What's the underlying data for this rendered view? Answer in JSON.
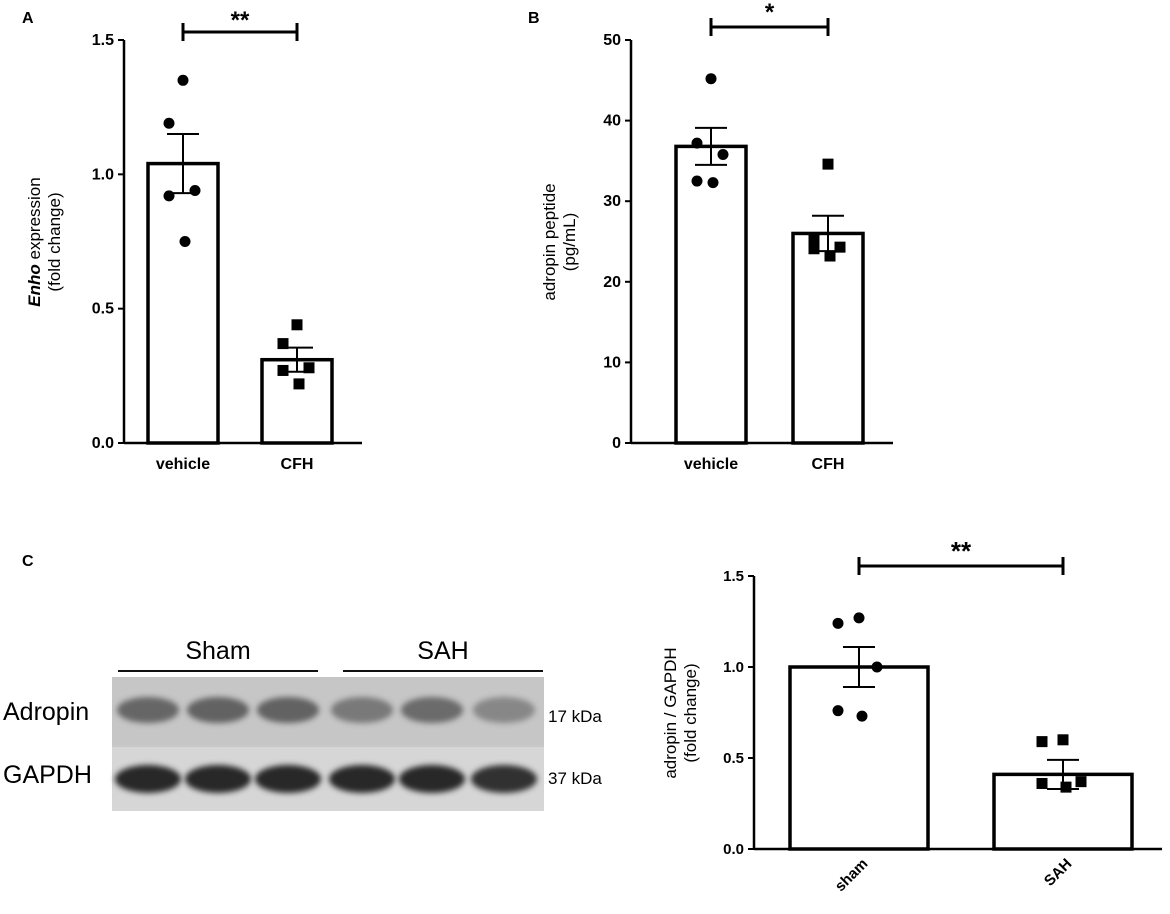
{
  "panels": {
    "a": {
      "letter": "A"
    },
    "b": {
      "letter": "B"
    },
    "c": {
      "letter": "C"
    }
  },
  "chart_data": [
    {
      "id": "A",
      "type": "bar",
      "categories": [
        "vehicle",
        "CFH"
      ],
      "values": [
        1.04,
        0.31
      ],
      "errors": [
        0.11,
        0.045
      ],
      "points": [
        [
          1.35,
          1.19,
          0.94,
          0.92,
          0.75
        ],
        [
          0.44,
          0.37,
          0.28,
          0.27,
          0.22
        ]
      ],
      "markers": [
        "circle",
        "square"
      ],
      "ylabel_italic": "Enho",
      "ylabel_rest": " expression",
      "ylabel2": "(fold change)",
      "ylim": [
        0,
        1.5
      ],
      "yticks": [
        "0.0",
        "0.5",
        "1.0",
        "1.5"
      ],
      "significance": "**"
    },
    {
      "id": "B",
      "type": "bar",
      "categories": [
        "vehicle",
        "CFH"
      ],
      "values": [
        36.8,
        26.0
      ],
      "errors": [
        2.3,
        2.2
      ],
      "points": [
        [
          45.2,
          37.2,
          35.8,
          32.5,
          32.3
        ],
        [
          34.6,
          25.2,
          24.3,
          24.1,
          23.2
        ]
      ],
      "markers": [
        "circle",
        "square"
      ],
      "ylabel": "adropin peptide",
      "ylabel2": "(pg/mL)",
      "ylim": [
        0,
        50
      ],
      "yticks": [
        "0",
        "10",
        "20",
        "30",
        "40",
        "50"
      ],
      "significance": "*"
    },
    {
      "id": "C",
      "type": "bar",
      "categories": [
        "sham",
        "SAH"
      ],
      "values": [
        1.0,
        0.41
      ],
      "errors": [
        0.11,
        0.08
      ],
      "points": [
        [
          1.27,
          1.24,
          1.0,
          0.76,
          0.73
        ],
        [
          0.6,
          0.59,
          0.37,
          0.36,
          0.34
        ]
      ],
      "markers": [
        "circle",
        "square"
      ],
      "ylabel": "adropin / GAPDH",
      "ylabel2": "(fold change)",
      "ylim": [
        0,
        1.5
      ],
      "yticks": [
        "0.0",
        "0.5",
        "1.0",
        "1.5"
      ],
      "significance": "**"
    }
  ],
  "western_blot": {
    "groups": [
      {
        "label": "Sham"
      },
      {
        "label": "SAH"
      }
    ],
    "rows": [
      {
        "protein": "Adropin",
        "size": "17 kDa",
        "intensities": [
          0.55,
          0.6,
          0.6,
          0.35,
          0.5,
          0.2
        ]
      },
      {
        "protein": "GAPDH",
        "size": "37 kDa",
        "intensities": [
          1,
          1,
          1,
          1,
          1,
          0.95
        ]
      }
    ]
  }
}
